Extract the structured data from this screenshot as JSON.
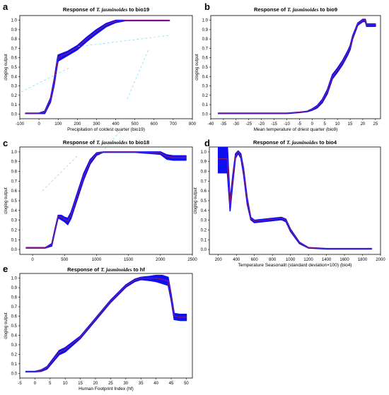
{
  "colors": {
    "band": "#1010ee",
    "mean": "#8b1a7a",
    "halo": "#ff8ce8",
    "guide": "#55c8ff"
  },
  "chart_data": [
    {
      "panel": "a",
      "type": "line",
      "title_prefix": "Response of ",
      "title_species": "T. jasminoides",
      "title_suffix": " to bio19",
      "xlabel": "Precipitation of coldest quarter (bio19)",
      "ylabel": "cloglog output",
      "xlim": [
        -100,
        800
      ],
      "ylim": [
        -0.05,
        1.05
      ],
      "xticks": [
        -100,
        0,
        100,
        200,
        300,
        400,
        500,
        600,
        700,
        800
      ],
      "yticks": [
        "0.0",
        "0.1",
        "0.2",
        "0.3",
        "0.4",
        "0.5",
        "0.6",
        "0.7",
        "0.8",
        "0.9",
        "1.0"
      ],
      "x": [
        -70,
        0,
        30,
        60,
        80,
        95,
        100,
        150,
        200,
        250,
        300,
        350,
        400,
        450,
        500,
        600,
        680
      ],
      "y": [
        0.01,
        0.01,
        0.02,
        0.15,
        0.35,
        0.55,
        0.6,
        0.65,
        0.71,
        0.8,
        0.88,
        0.95,
        0.99,
        1.0,
        1.0,
        1.0,
        1.0
      ],
      "band": [
        0.0,
        0.0,
        0.01,
        0.02,
        0.03,
        0.03,
        0.03,
        0.02,
        0.02,
        0.02,
        0.02,
        0.015,
        0.01,
        0.0,
        0.0,
        0.0,
        0.0
      ]
    },
    {
      "panel": "b",
      "type": "line",
      "title_prefix": "Response of ",
      "title_species": "T. jasminoides",
      "title_suffix": " to bio9",
      "xlabel": "Mean temperature of driest quarter (bio9)",
      "ylabel": "cloglog output",
      "xlim": [
        -40,
        27
      ],
      "ylim": [
        -0.05,
        1.05
      ],
      "xticks": [
        -40,
        -35,
        -30,
        -25,
        -20,
        -15,
        -10,
        -5,
        0,
        5,
        10,
        15,
        20,
        25
      ],
      "yticks": [
        "0.0",
        "0.1",
        "0.2",
        "0.3",
        "0.4",
        "0.5",
        "0.6",
        "0.7",
        "0.8",
        "0.9",
        "1.0"
      ],
      "x": [
        -37,
        -20,
        -10,
        -5,
        -2,
        0,
        2,
        4,
        6,
        8,
        10,
        12,
        14,
        15,
        16,
        18,
        20,
        21,
        21.5,
        22,
        25
      ],
      "y": [
        0.01,
        0.01,
        0.01,
        0.02,
        0.03,
        0.05,
        0.08,
        0.14,
        0.24,
        0.4,
        0.47,
        0.55,
        0.65,
        0.71,
        0.82,
        0.96,
        1.0,
        1.0,
        0.95,
        0.95,
        0.95
      ],
      "band": [
        0,
        0,
        0,
        0,
        0,
        0.005,
        0.01,
        0.015,
        0.02,
        0.02,
        0.02,
        0.02,
        0.02,
        0.02,
        0.015,
        0.01,
        0.01,
        0.01,
        0.01,
        0.01,
        0.01
      ]
    },
    {
      "panel": "c",
      "type": "line",
      "title_prefix": "Response of ",
      "title_species": "T. jasminoides",
      "title_suffix": " to bio18",
      "xlabel": "",
      "ylabel": "cloglog output",
      "xlim": [
        -200,
        2500
      ],
      "ylim": [
        -0.05,
        1.05
      ],
      "xticks": [
        0,
        500,
        1000,
        1500,
        2000,
        2500
      ],
      "yticks": [
        "0.0",
        "0.1",
        "0.2",
        "0.3",
        "0.4",
        "0.5",
        "0.6",
        "0.7",
        "0.8",
        "0.9",
        "1.0"
      ],
      "x": [
        -100,
        200,
        300,
        350,
        400,
        450,
        500,
        550,
        600,
        700,
        800,
        900,
        1000,
        1100,
        1200,
        1600,
        2000,
        2100,
        2200,
        2400
      ],
      "y": [
        0.02,
        0.02,
        0.05,
        0.2,
        0.34,
        0.33,
        0.31,
        0.29,
        0.35,
        0.55,
        0.75,
        0.9,
        0.98,
        1.0,
        1.0,
        1.0,
        0.99,
        0.95,
        0.94,
        0.94
      ],
      "band": [
        0,
        0,
        0.01,
        0.01,
        0.01,
        0.02,
        0.02,
        0.03,
        0.03,
        0.03,
        0.03,
        0.02,
        0.01,
        0.0,
        0.0,
        0.0,
        0.01,
        0.02,
        0.02,
        0.02
      ]
    },
    {
      "panel": "d",
      "type": "line",
      "title_prefix": "Response of ",
      "title_species": "T. jasminoides",
      "title_suffix": " to bio4",
      "xlabel": "Temperature Seasonalit (standard deviation×100) (bio4)",
      "ylabel": "cloglog output",
      "xlim": [
        100,
        2000
      ],
      "ylim": [
        -0.05,
        1.05
      ],
      "xticks": [
        200,
        400,
        600,
        800,
        1000,
        1200,
        1400,
        1600,
        1800,
        2000
      ],
      "yticks": [
        "0.0",
        "0.1",
        "0.2",
        "0.3",
        "0.4",
        "0.5",
        "0.6",
        "0.7",
        "0.8",
        "0.9",
        "1.0"
      ],
      "x": [
        200,
        260,
        300,
        330,
        360,
        390,
        420,
        450,
        480,
        520,
        560,
        600,
        700,
        800,
        900,
        950,
        1000,
        1100,
        1200,
        1400,
        1600,
        1800,
        1900
      ],
      "y": [
        0.93,
        0.93,
        0.93,
        0.45,
        0.72,
        0.96,
        1.0,
        0.96,
        0.8,
        0.5,
        0.32,
        0.29,
        0.3,
        0.31,
        0.32,
        0.3,
        0.2,
        0.07,
        0.02,
        0.01,
        0.01,
        0.01,
        0.01
      ],
      "band": [
        0.14,
        0.14,
        0.14,
        0.05,
        0.04,
        0.02,
        0.01,
        0.02,
        0.03,
        0.03,
        0.01,
        0.01,
        0.01,
        0.01,
        0.01,
        0.01,
        0.01,
        0.005,
        0,
        0,
        0,
        0,
        0
      ]
    },
    {
      "panel": "e",
      "type": "line",
      "title_prefix": "Response of ",
      "title_species": "T. jasminoides",
      "title_suffix": " to hf",
      "xlabel": "Human Footprint Index (hf)",
      "ylabel": "cloglog output",
      "xlim": [
        -5,
        52
      ],
      "ylim": [
        -0.05,
        1.05
      ],
      "xticks": [
        -5,
        0,
        5,
        10,
        15,
        20,
        25,
        30,
        35,
        40,
        45,
        50
      ],
      "yticks": [
        "0.0",
        "0.1",
        "0.2",
        "0.3",
        "0.4",
        "0.5",
        "0.6",
        "0.7",
        "0.8",
        "0.9",
        "1.0"
      ],
      "x": [
        -3,
        0,
        2,
        4,
        6,
        8,
        10,
        15,
        20,
        25,
        30,
        33,
        35,
        38,
        40,
        42,
        44,
        45,
        46,
        48,
        50
      ],
      "y": [
        0.02,
        0.02,
        0.03,
        0.06,
        0.14,
        0.22,
        0.25,
        0.38,
        0.57,
        0.76,
        0.92,
        0.98,
        1.0,
        1.0,
        1.0,
        0.99,
        0.97,
        0.8,
        0.6,
        0.59,
        0.59
      ],
      "band": [
        0,
        0,
        0.005,
        0.01,
        0.015,
        0.02,
        0.02,
        0.01,
        0.01,
        0.01,
        0.01,
        0.01,
        0.01,
        0.02,
        0.03,
        0.04,
        0.04,
        0.03,
        0.03,
        0.03,
        0.03
      ]
    }
  ]
}
